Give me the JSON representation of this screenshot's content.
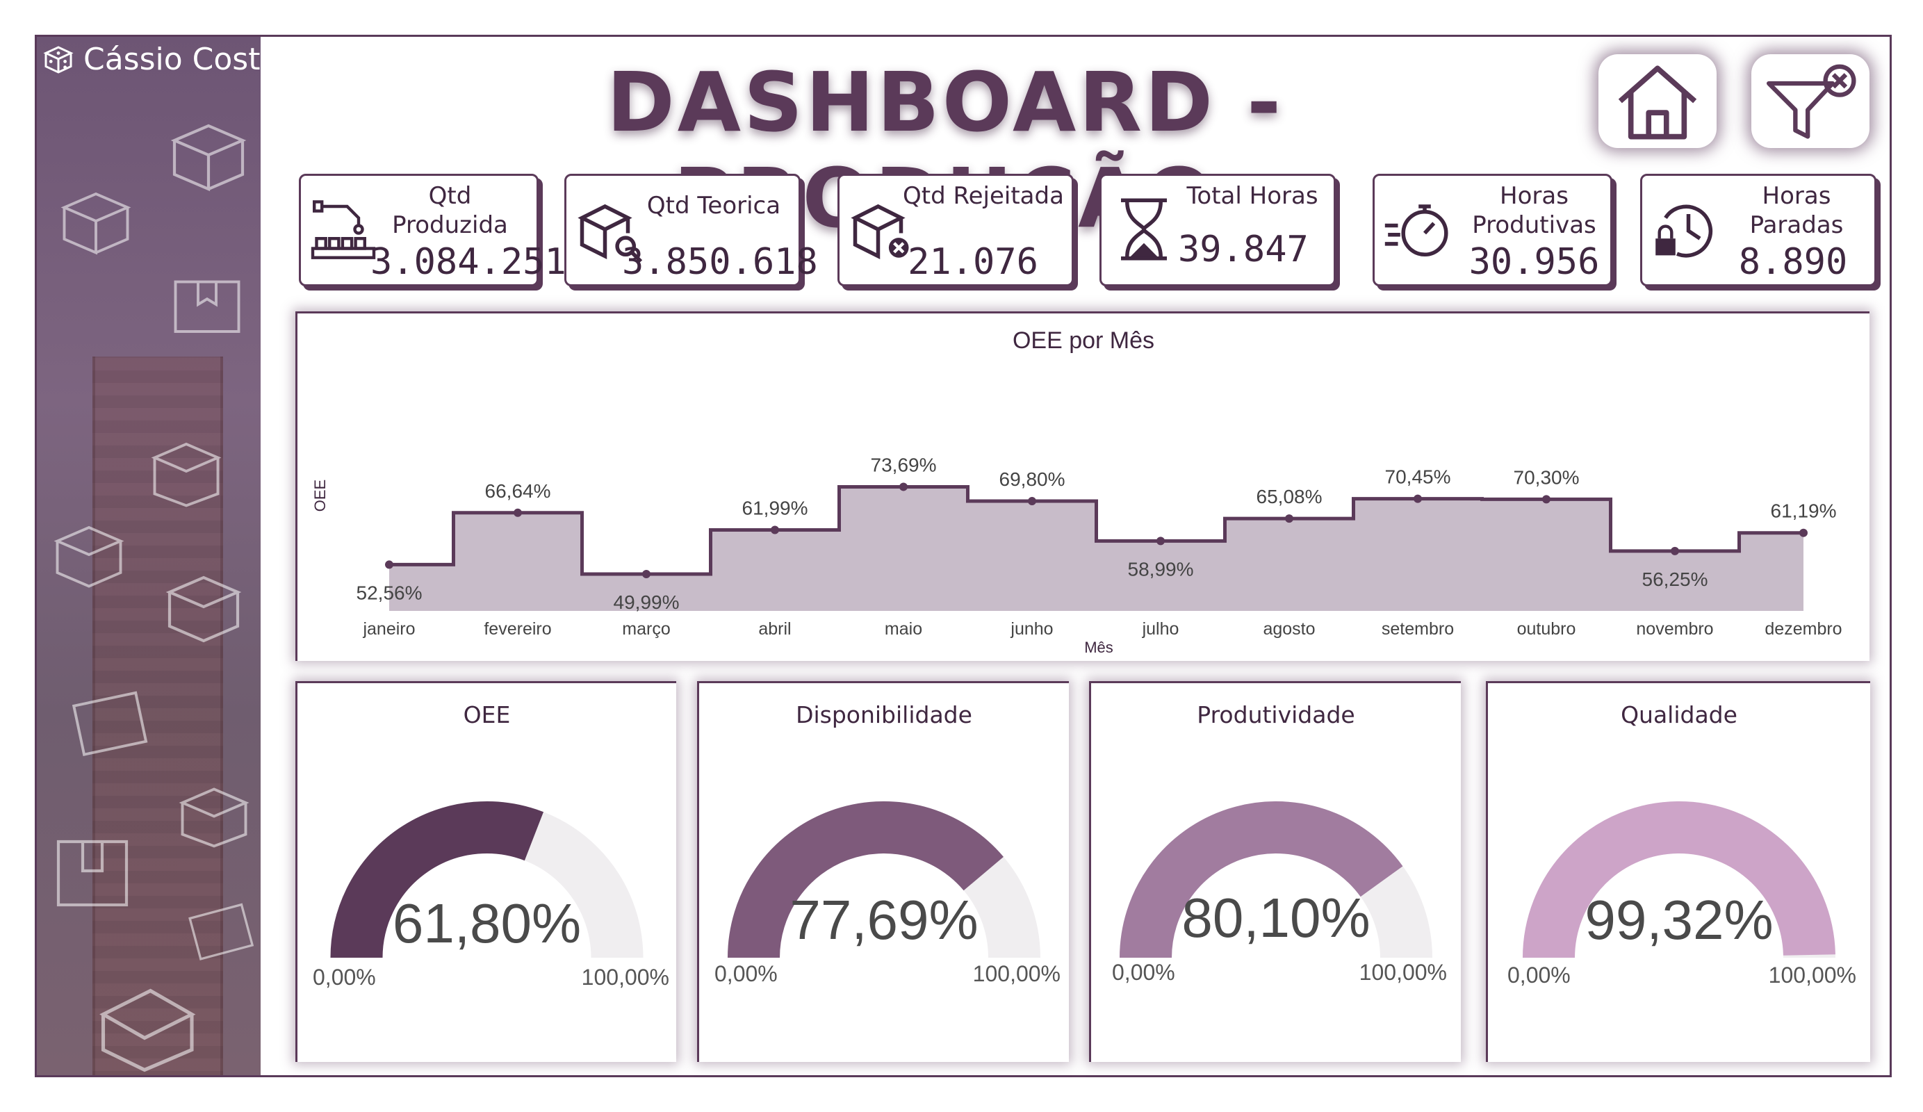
{
  "brand": {
    "name": "Cássio Costa"
  },
  "header": {
    "title": "DASHBOARD - PRODUÇÃO"
  },
  "nav": {
    "home": "home-icon",
    "clear_filter": "filter-clear-icon"
  },
  "kpis": [
    {
      "label": "Qtd\nProduzida",
      "value": "3.084.251",
      "icon": "production-line-icon"
    },
    {
      "label": "Qtd Teorica",
      "value": "3.850.618",
      "icon": "box-search-icon"
    },
    {
      "label": "Qtd Rejeitada",
      "value": "21.076",
      "icon": "box-reject-icon"
    },
    {
      "label": "Total Horas",
      "value": "39.847",
      "icon": "hourglass-icon"
    },
    {
      "label": "Horas\nProdutivas",
      "value": "30.956",
      "icon": "stopwatch-icon"
    },
    {
      "label": "Horas\nParadas",
      "value": "8.890",
      "icon": "clock-lock-icon"
    }
  ],
  "chart_data": {
    "type": "area",
    "title": "OEE por Mês",
    "xlabel": "Mês",
    "ylabel": "OEE",
    "categories": [
      "janeiro",
      "fevereiro",
      "março",
      "abril",
      "maio",
      "junho",
      "julho",
      "agosto",
      "setembro",
      "outubro",
      "novembro",
      "dezembro"
    ],
    "values": [
      52.56,
      66.64,
      49.99,
      61.99,
      73.69,
      69.8,
      58.99,
      65.08,
      70.45,
      70.3,
      56.25,
      61.19
    ],
    "labels": [
      "52,56%",
      "66,64%",
      "49,99%",
      "61,99%",
      "73,69%",
      "69,80%",
      "58,99%",
      "65,08%",
      "70,45%",
      "70,30%",
      "56,25%",
      "61,19%"
    ],
    "step": true,
    "grid": false,
    "colors": {
      "line": "#5b3a59",
      "fill": "#c8bcc9"
    }
  },
  "gauges": [
    {
      "title": "OEE",
      "value": 61.8,
      "value_label": "61,80%",
      "min_label": "0,00%",
      "max_label": "100,00%",
      "color": "#5b3a59"
    },
    {
      "title": "Disponibilidade",
      "value": 77.69,
      "value_label": "77,69%",
      "min_label": "0,00%",
      "max_label": "100,00%",
      "color": "#7e5a7b"
    },
    {
      "title": "Produtividade",
      "value": 80.1,
      "value_label": "80,10%",
      "min_label": "0,00%",
      "max_label": "100,00%",
      "color": "#a17c9f"
    },
    {
      "title": "Qualidade",
      "value": 99.32,
      "value_label": "99,32%",
      "min_label": "0,00%",
      "max_label": "100,00%",
      "color": "#cda4c8"
    }
  ],
  "colors": {
    "accent": "#5b3a59",
    "track": "#f0eef0"
  }
}
